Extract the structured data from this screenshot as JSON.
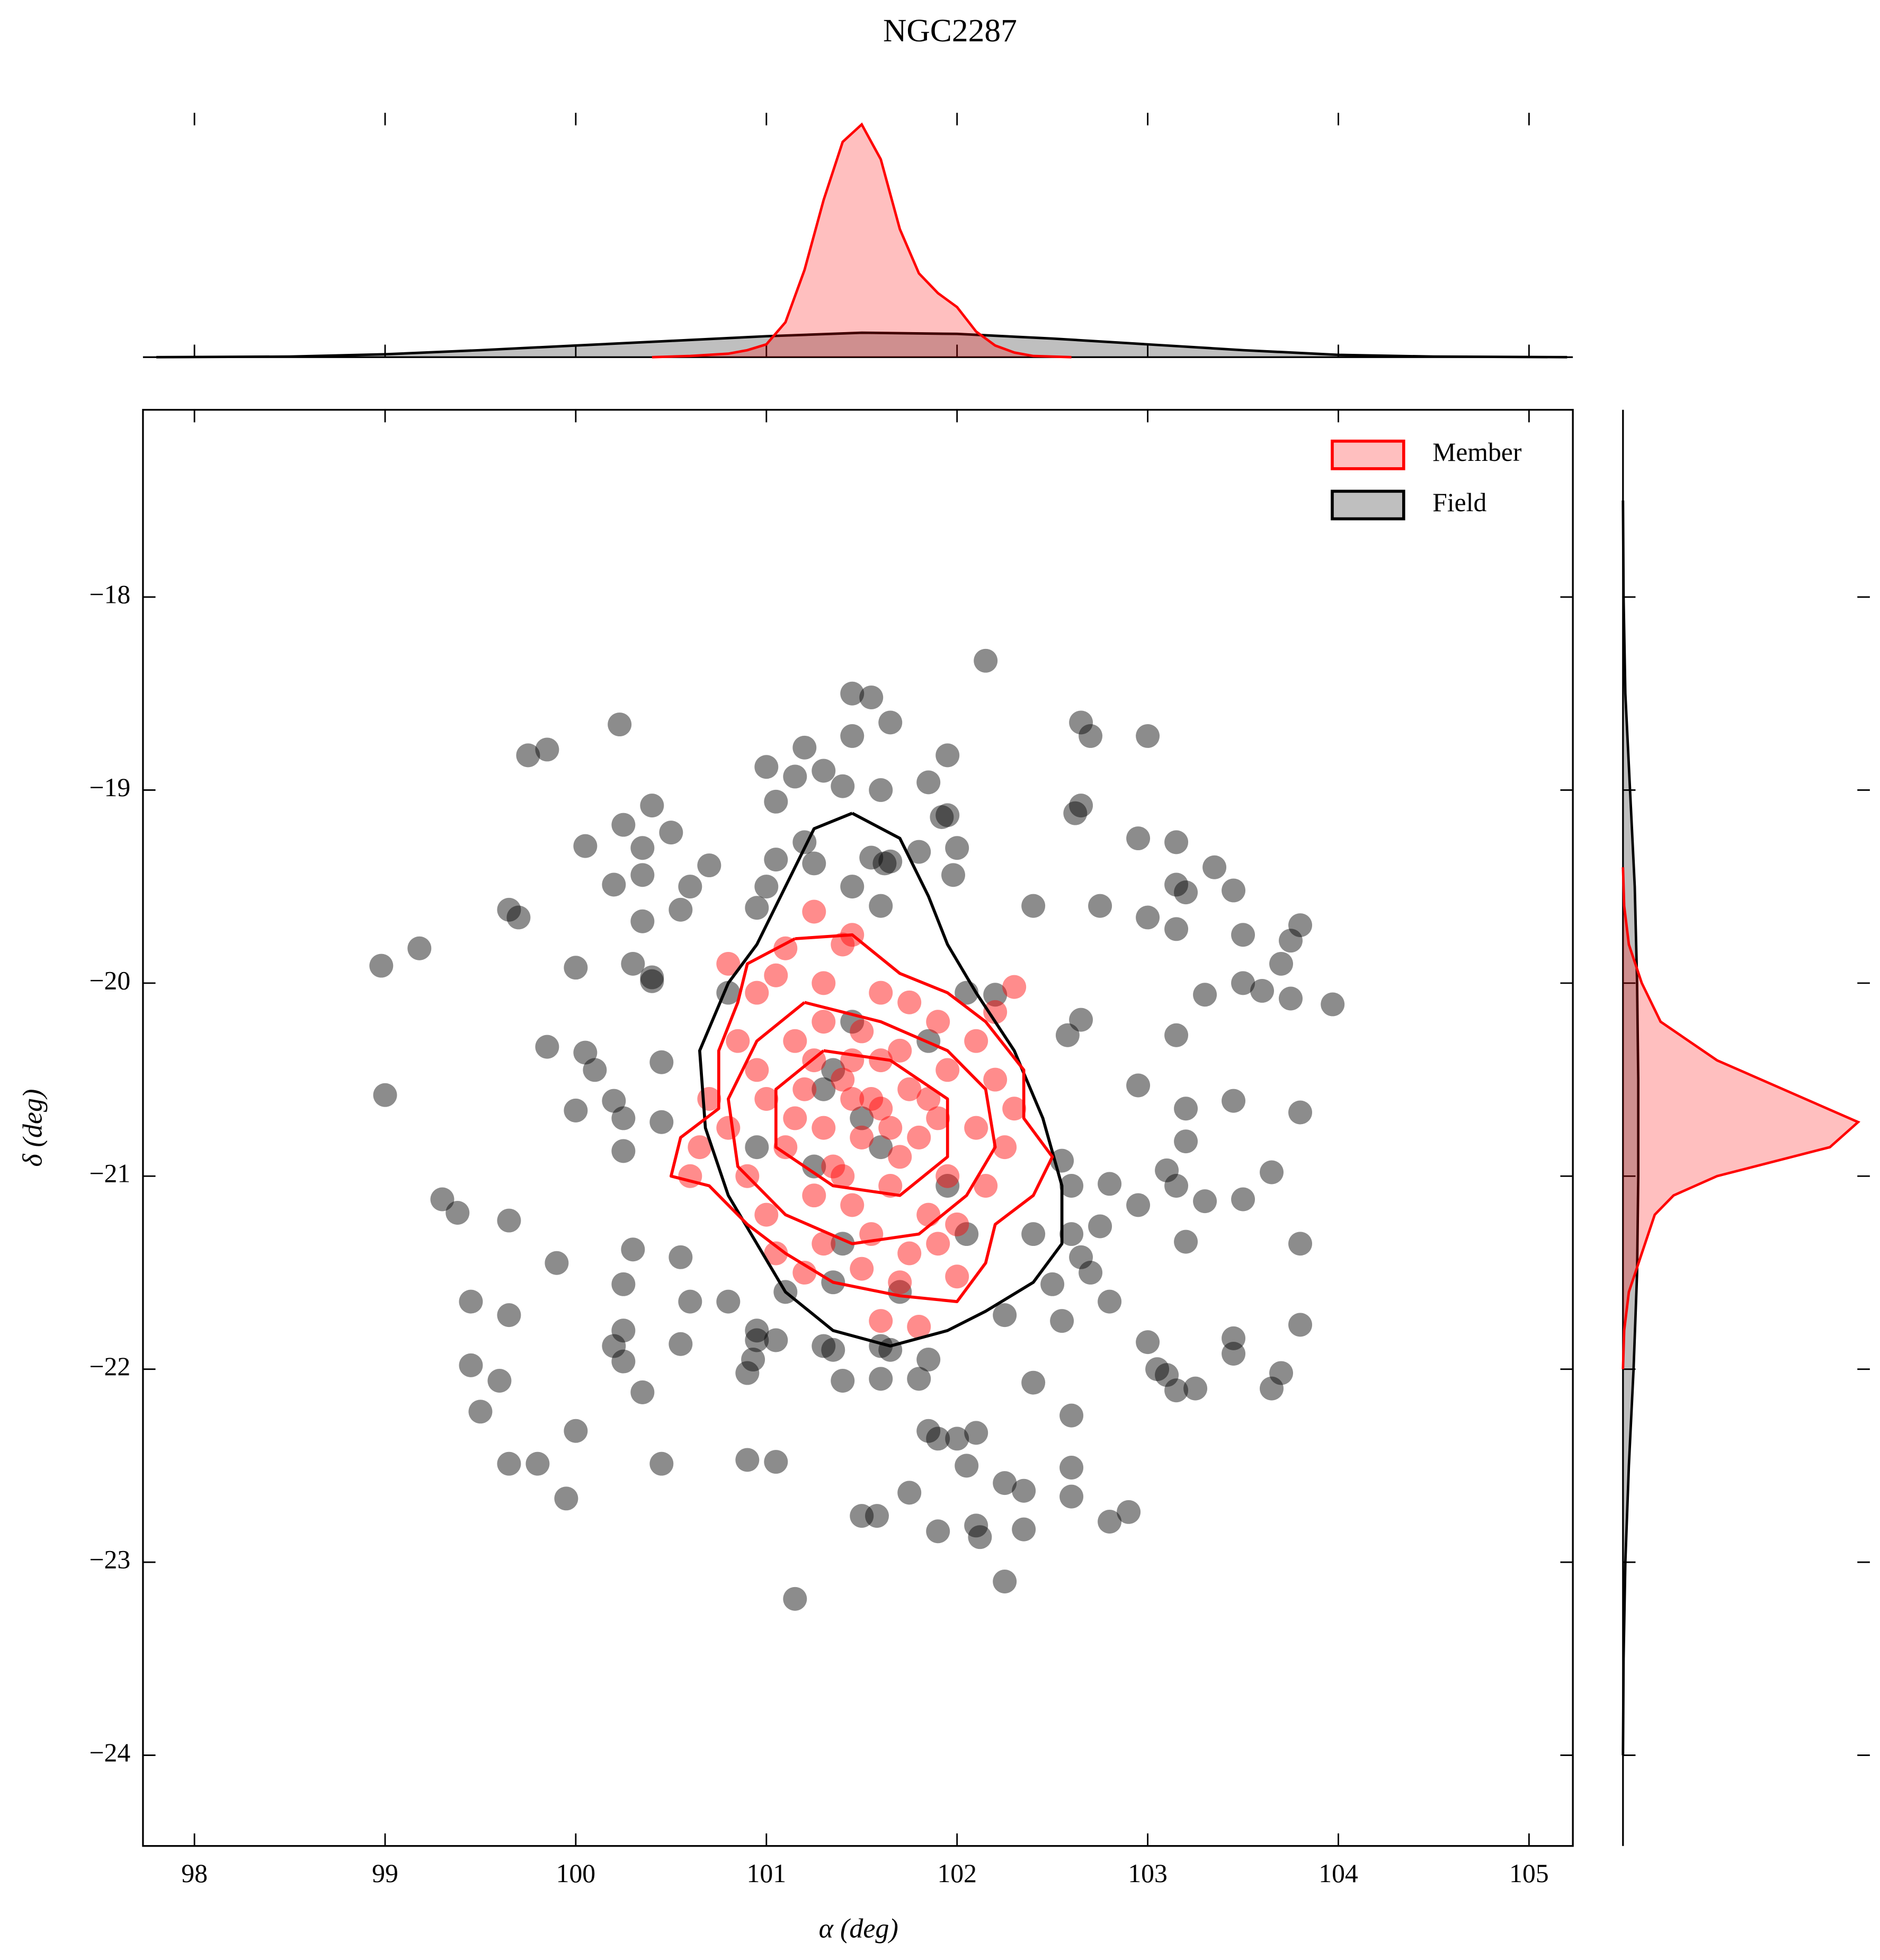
{
  "chart_data": {
    "type": "scatter",
    "title": "NGC2287",
    "x_label": "α (deg)",
    "y_label": "δ (deg)",
    "xlim": [
      97.73,
      105.23
    ],
    "ylim": [
      -24.47,
      -17.03
    ],
    "xticks": [
      98,
      99,
      100,
      101,
      102,
      103,
      104,
      105
    ],
    "yticks": [
      {
        "value": -18,
        "label": "−18"
      },
      {
        "value": -19,
        "label": "−19"
      },
      {
        "value": -20,
        "label": "−20"
      },
      {
        "value": -21,
        "label": "−21"
      },
      {
        "value": -22,
        "label": "−22"
      },
      {
        "value": -23,
        "label": "−23"
      },
      {
        "value": -24,
        "label": "−24"
      }
    ],
    "legend": "upper right",
    "x_marginal": {
      "ylim": [
        0,
        2.1
      ]
    },
    "y_marginal": {
      "xlim": [
        0,
        2.1
      ]
    },
    "series": [
      {
        "name": "Field",
        "color": "#000000",
        "x": [
          102.15,
          101.45,
          101.55,
          101.45,
          101.65,
          102.65,
          102.7,
          103.0,
          99.75,
          99.85,
          100.23,
          101.2,
          101.3,
          101.95,
          101.0,
          101.15,
          101.4,
          101.6,
          101.05,
          101.85,
          102.65,
          102.62,
          101.95,
          101.92,
          100.4,
          100.25,
          100.5,
          100.05,
          100.35,
          101.2,
          101.05,
          101.25,
          101.55,
          101.65,
          101.62,
          101.8,
          102.0,
          102.95,
          103.15,
          100.7,
          100.35,
          100.2,
          100.6,
          101.0,
          101.45,
          101.6,
          101.98,
          102.4,
          102.75,
          103.15,
          103.2,
          103.45,
          103.35,
          100.95,
          100.55,
          100.35,
          99.65,
          99.7,
          99.18,
          98.98,
          100.0,
          100.3,
          100.4,
          100.4,
          103.0,
          103.15,
          103.5,
          103.8,
          103.75,
          103.7,
          103.6,
          103.5,
          103.75,
          103.97,
          103.3,
          102.2,
          102.65,
          102.58,
          103.15,
          99.85,
          100.05,
          100.1,
          100.45,
          99.0,
          100.0,
          100.2,
          100.25,
          100.45,
          100.25,
          102.95,
          103.45,
          103.8,
          103.2,
          103.2,
          102.55,
          103.1,
          103.15,
          103.65,
          102.6,
          102.8,
          102.95,
          102.75,
          103.3,
          103.5,
          99.3,
          99.38,
          99.65,
          99.9,
          100.3,
          100.55,
          100.25,
          102.6,
          102.65,
          102.7,
          103.2,
          103.8,
          102.4,
          102.5,
          99.45,
          99.65,
          100.6,
          100.8,
          100.25,
          100.2,
          100.25,
          100.55,
          100.95,
          100.95,
          101.05,
          101.35,
          101.6,
          101.65,
          101.85,
          102.25,
          102.55,
          102.8,
          103.0,
          103.05,
          103.1,
          103.15,
          103.25,
          103.45,
          103.45,
          103.65,
          103.7,
          103.8,
          99.45,
          99.6,
          99.5,
          100.35,
          100.9,
          100.93,
          101.4,
          101.6,
          101.8,
          102.4,
          102.6,
          101.85,
          101.9,
          102.0,
          102.1,
          99.65,
          99.8,
          100.0,
          100.45,
          100.9,
          101.05,
          102.05,
          102.25,
          102.35,
          102.6,
          102.6,
          101.75,
          99.95,
          101.5,
          101.58,
          101.9,
          102.1,
          102.12,
          102.35,
          102.8,
          102.9,
          102.25,
          101.15,
          101.35,
          101.3,
          101.5,
          101.6,
          101.25,
          101.7,
          101.35,
          101.1,
          102.05,
          101.95,
          102.05,
          101.85,
          101.45,
          100.8,
          100.95,
          101.4,
          101.3
        ],
        "y": [
          -18.33,
          -18.5,
          -18.52,
          -18.72,
          -18.65,
          -18.65,
          -18.72,
          -18.72,
          -18.82,
          -18.79,
          -18.66,
          -18.78,
          -18.9,
          -18.82,
          -18.88,
          -18.93,
          -18.98,
          -19.0,
          -19.06,
          -18.96,
          -19.08,
          -19.12,
          -19.13,
          -19.14,
          -19.08,
          -19.18,
          -19.22,
          -19.29,
          -19.3,
          -19.27,
          -19.36,
          -19.38,
          -19.35,
          -19.37,
          -19.38,
          -19.32,
          -19.3,
          -19.25,
          -19.27,
          -19.39,
          -19.44,
          -19.49,
          -19.5,
          -19.5,
          -19.5,
          -19.6,
          -19.44,
          -19.6,
          -19.6,
          -19.49,
          -19.53,
          -19.52,
          -19.4,
          -19.61,
          -19.62,
          -19.68,
          -19.62,
          -19.66,
          -19.82,
          -19.91,
          -19.92,
          -19.9,
          -19.97,
          -19.99,
          -19.66,
          -19.72,
          -19.75,
          -19.7,
          -19.78,
          -19.9,
          -20.04,
          -20.0,
          -20.08,
          -20.11,
          -20.06,
          -20.06,
          -20.19,
          -20.27,
          -20.27,
          -20.33,
          -20.36,
          -20.45,
          -20.41,
          -20.58,
          -20.66,
          -20.61,
          -20.7,
          -20.72,
          -20.87,
          -20.53,
          -20.61,
          -20.67,
          -20.65,
          -20.82,
          -20.92,
          -20.97,
          -21.05,
          -20.98,
          -21.05,
          -21.04,
          -21.15,
          -21.26,
          -21.13,
          -21.12,
          -21.12,
          -21.19,
          -21.23,
          -21.45,
          -21.38,
          -21.42,
          -21.56,
          -21.3,
          -21.42,
          -21.5,
          -21.34,
          -21.35,
          -21.3,
          -21.56,
          -21.65,
          -21.72,
          -21.65,
          -21.65,
          -21.8,
          -21.88,
          -21.96,
          -21.87,
          -21.8,
          -21.85,
          -21.85,
          -21.9,
          -21.88,
          -21.9,
          -21.95,
          -21.72,
          -21.75,
          -21.65,
          -21.86,
          -22.0,
          -22.03,
          -22.11,
          -22.1,
          -21.92,
          -21.84,
          -22.1,
          -22.02,
          -21.77,
          -21.98,
          -22.06,
          -22.22,
          -22.12,
          -22.02,
          -21.95,
          -22.06,
          -22.05,
          -22.05,
          -22.07,
          -22.24,
          -22.32,
          -22.36,
          -22.36,
          -22.33,
          -22.49,
          -22.49,
          -22.32,
          -22.49,
          -22.47,
          -22.48,
          -22.5,
          -22.59,
          -22.63,
          -22.51,
          -22.66,
          -22.64,
          -22.67,
          -22.76,
          -22.76,
          -22.84,
          -22.81,
          -22.87,
          -22.83,
          -22.79,
          -22.74,
          -23.1,
          -23.19,
          -20.45,
          -20.55,
          -20.7,
          -20.85,
          -20.95,
          -21.6,
          -21.55,
          -21.6,
          -21.3,
          -21.05,
          -20.05,
          -20.3,
          -20.2,
          -20.05,
          -20.85,
          -21.35,
          -21.88
        ],
        "kde": {
          "x": [
            97.8,
            98.5,
            99.0,
            99.5,
            100.0,
            100.5,
            101.0,
            101.5,
            102.0,
            102.5,
            103.0,
            103.5,
            104.0,
            104.5,
            105.2
          ],
          "values": [
            0,
            0.005,
            0.025,
            0.06,
            0.1,
            0.14,
            0.18,
            0.21,
            0.2,
            0.16,
            0.11,
            0.06,
            0.02,
            0.005,
            0
          ]
        },
        "y_kde": {
          "y": [
            -17.5,
            -18.0,
            -18.5,
            -19.0,
            -19.5,
            -20.0,
            -20.5,
            -21.0,
            -21.5,
            -22.0,
            -22.5,
            -23.0,
            -23.5,
            -24.0
          ],
          "values": [
            0,
            0.005,
            0.02,
            0.06,
            0.1,
            0.12,
            0.13,
            0.13,
            0.12,
            0.09,
            0.05,
            0.02,
            0.005,
            0
          ]
        },
        "contours": [
          {
            "x": [
              101.45,
              101.7,
              101.85,
              101.95,
              102.1,
              102.3,
              102.45,
              102.55,
              102.55,
              102.4,
              102.15,
              101.95,
              101.65,
              101.35,
              101.1,
              100.95,
              100.8,
              100.68,
              100.65,
              100.8,
              100.95,
              101.1,
              101.25,
              101.45
            ],
            "y": [
              -19.12,
              -19.25,
              -19.55,
              -19.8,
              -20.05,
              -20.35,
              -20.7,
              -21.05,
              -21.35,
              -21.55,
              -21.7,
              -21.8,
              -21.88,
              -21.8,
              -21.6,
              -21.35,
              -21.1,
              -20.75,
              -20.35,
              -20.0,
              -19.8,
              -19.5,
              -19.2,
              -19.12
            ]
          }
        ]
      },
      {
        "name": "Member",
        "color": "#ff0000",
        "x": [
          101.25,
          101.4,
          101.45,
          101.1,
          101.05,
          100.8,
          100.95,
          101.3,
          101.6,
          101.75,
          101.9,
          102.1,
          102.3,
          102.2,
          100.85,
          100.95,
          101.15,
          101.3,
          101.5,
          101.7,
          101.95,
          102.2,
          102.3,
          100.7,
          100.65,
          100.8,
          101.0,
          101.2,
          101.4,
          101.55,
          101.75,
          101.9,
          102.1,
          102.25,
          100.6,
          100.9,
          101.1,
          101.3,
          101.5,
          101.7,
          101.95,
          102.15,
          101.0,
          101.25,
          101.45,
          101.65,
          101.85,
          102.0,
          101.05,
          101.3,
          101.55,
          101.75,
          101.9,
          101.2,
          101.5,
          101.7,
          102.0,
          101.6,
          101.8,
          101.45,
          101.6,
          101.35,
          101.6,
          101.8,
          101.15,
          101.45,
          101.65,
          101.25,
          101.85,
          101.4
        ],
        "y": [
          -19.63,
          -19.8,
          -19.75,
          -19.82,
          -19.96,
          -19.9,
          -20.05,
          -20.0,
          -20.05,
          -20.1,
          -20.2,
          -20.3,
          -20.02,
          -20.15,
          -20.3,
          -20.45,
          -20.3,
          -20.2,
          -20.25,
          -20.35,
          -20.45,
          -20.5,
          -20.65,
          -20.6,
          -20.85,
          -20.75,
          -20.6,
          -20.55,
          -20.5,
          -20.6,
          -20.55,
          -20.7,
          -20.75,
          -20.85,
          -21.0,
          -21.0,
          -20.85,
          -20.75,
          -20.8,
          -20.9,
          -21.0,
          -21.05,
          -21.2,
          -21.1,
          -21.15,
          -21.05,
          -21.2,
          -21.25,
          -21.4,
          -21.35,
          -21.3,
          -21.4,
          -21.35,
          -21.5,
          -21.48,
          -21.55,
          -21.52,
          -21.75,
          -21.78,
          -20.4,
          -20.4,
          -20.95,
          -20.65,
          -20.8,
          -20.7,
          -20.6,
          -20.75,
          -20.4,
          -20.6,
          -21.0
        ],
        "kde": {
          "x": [
            100.4,
            100.6,
            100.8,
            100.9,
            101.0,
            101.1,
            101.2,
            101.3,
            101.4,
            101.5,
            101.6,
            101.7,
            101.8,
            101.9,
            102.0,
            102.1,
            102.2,
            102.3,
            102.4,
            102.6
          ],
          "values": [
            0,
            0.01,
            0.03,
            0.06,
            0.11,
            0.3,
            0.75,
            1.35,
            1.85,
            2.0,
            1.7,
            1.1,
            0.72,
            0.55,
            0.43,
            0.22,
            0.1,
            0.04,
            0.01,
            0
          ]
        },
        "y_kde": {
          "y": [
            -19.4,
            -19.6,
            -19.8,
            -20.0,
            -20.2,
            -20.4,
            -20.6,
            -20.72,
            -20.85,
            -21.0,
            -21.1,
            -21.2,
            -21.4,
            -21.6,
            -21.8,
            -22.0
          ],
          "values": [
            0,
            0.01,
            0.05,
            0.16,
            0.32,
            0.8,
            1.55,
            2.0,
            1.76,
            0.8,
            0.43,
            0.27,
            0.16,
            0.05,
            0.01,
            0
          ]
        },
        "contours": [
          {
            "x": [
              101.15,
              101.45,
              101.7,
              101.95,
              102.15,
              102.35,
              102.35,
              102.5,
              102.4,
              102.2,
              102.15,
              102.0,
              101.7,
              101.35,
              101.1,
              100.9,
              100.7,
              100.5,
              100.55,
              100.75,
              100.75,
              100.85,
              100.9,
              101.15
            ],
            "y": [
              -19.77,
              -19.75,
              -19.95,
              -20.05,
              -20.2,
              -20.45,
              -20.7,
              -20.9,
              -21.1,
              -21.25,
              -21.45,
              -21.65,
              -21.62,
              -21.55,
              -21.4,
              -21.25,
              -21.05,
              -21.0,
              -20.8,
              -20.65,
              -20.35,
              -20.1,
              -19.9,
              -19.77
            ]
          },
          {
            "x": [
              101.2,
              101.6,
              101.95,
              102.15,
              102.2,
              102.05,
              101.8,
              101.45,
              101.1,
              100.85,
              100.8,
              100.95,
              101.2
            ],
            "y": [
              -20.1,
              -20.2,
              -20.35,
              -20.55,
              -20.85,
              -21.1,
              -21.3,
              -21.35,
              -21.2,
              -20.95,
              -20.6,
              -20.3,
              -20.1
            ]
          },
          {
            "x": [
              101.3,
              101.65,
              101.95,
              101.95,
              101.7,
              101.35,
              101.05,
              101.05,
              101.3
            ],
            "y": [
              -20.35,
              -20.4,
              -20.6,
              -20.9,
              -21.1,
              -21.05,
              -20.85,
              -20.55,
              -20.35
            ]
          }
        ]
      }
    ]
  }
}
